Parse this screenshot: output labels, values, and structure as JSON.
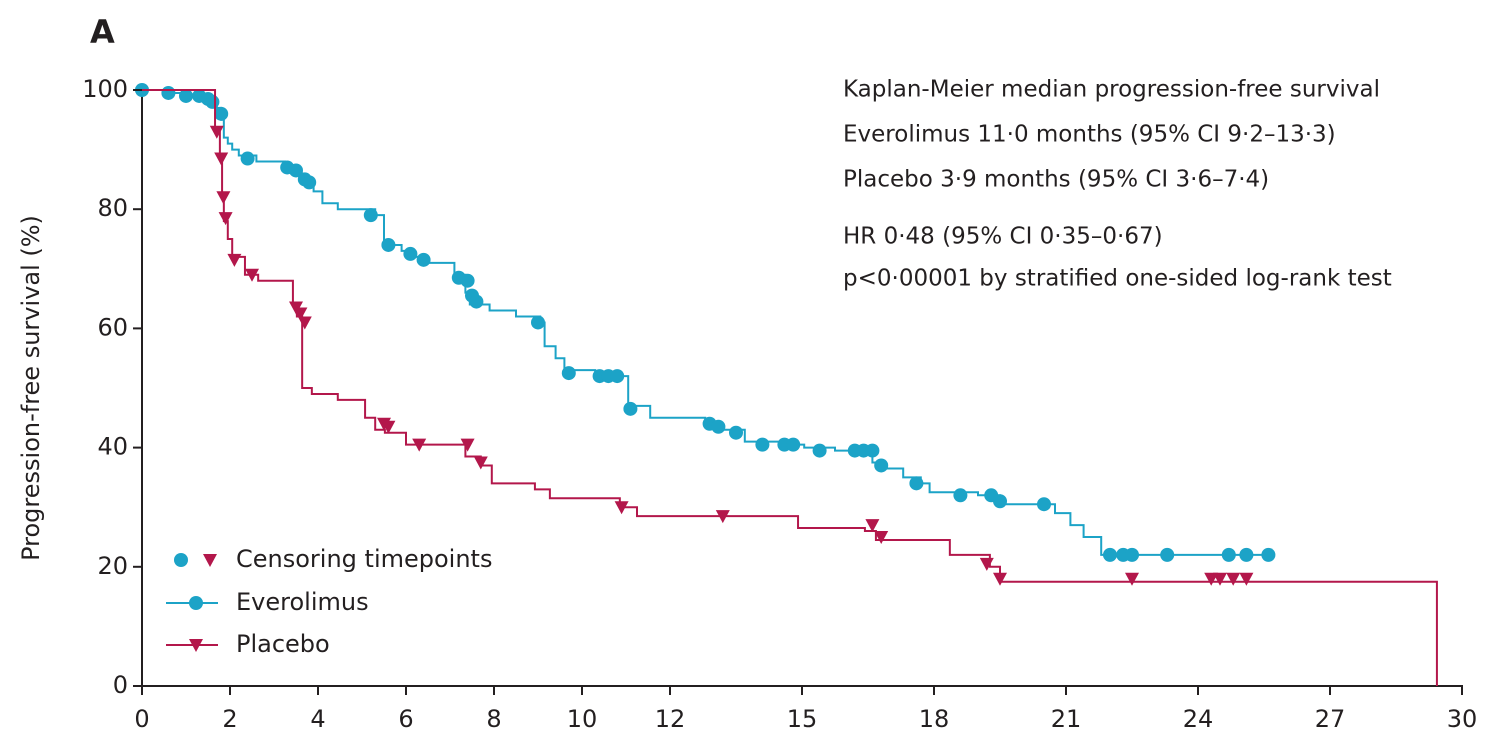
{
  "chart_data": {
    "type": "step",
    "panel_label": "A",
    "ylabel": "Progression-free survival (%)",
    "xlim": [
      0,
      30
    ],
    "ylim": [
      0,
      100
    ],
    "xticks": [
      0,
      2,
      4,
      6,
      8,
      10,
      12,
      15,
      18,
      21,
      24,
      27,
      30
    ],
    "yticks": [
      0,
      20,
      40,
      60,
      80,
      100
    ],
    "annotations": [
      "Kaplan-Meier median progression-free survival",
      "Everolimus 11·0 months (95% CI 9·2–13·3)",
      "Placebo 3·9 months (95% CI 3·6–7·4)",
      "HR 0·48 (95% CI 0·35–0·67)",
      "p<0·00001 by stratified one-sided log-rank test"
    ],
    "censor_legend": "Censoring timepoints",
    "series": [
      {
        "name": "Everolimus",
        "color": "#1ca3c7",
        "marker": "circle",
        "x": [
          0,
          0.5,
          1.0,
          1.4,
          1.7,
          1.8,
          1.86,
          1.95,
          2.05,
          2.2,
          2.6,
          3.25,
          3.6,
          3.7,
          3.9,
          4.1,
          4.45,
          5.3,
          5.5,
          5.9,
          6.1,
          6.5,
          7.1,
          7.35,
          7.45,
          7.9,
          8.5,
          9.05,
          9.15,
          9.4,
          9.6,
          10.3,
          11.05,
          11.55,
          12.8,
          13.15,
          13.7,
          14.5,
          15.05,
          15.75,
          16.6,
          16.75,
          17.3,
          17.7,
          17.9,
          19.0,
          19.5,
          20.75,
          21.1,
          21.4,
          21.8,
          25.6
        ],
        "values": [
          100,
          99.5,
          99,
          98.5,
          97,
          95,
          92,
          91,
          90,
          89,
          88,
          87,
          86,
          85,
          83,
          81,
          80,
          79,
          74,
          73,
          72,
          71,
          69,
          66,
          64,
          63,
          62,
          61,
          57,
          55,
          53,
          52,
          47,
          45,
          44,
          43,
          41,
          40.5,
          40,
          39.5,
          37.5,
          36.5,
          35,
          34,
          32.5,
          32,
          30.5,
          29,
          27,
          25,
          22,
          22
        ],
        "censored_x": [
          0,
          0.6,
          1.0,
          1.3,
          1.5,
          1.6,
          1.8,
          2.4,
          3.3,
          3.5,
          3.7,
          3.8,
          5.2,
          5.6,
          6.1,
          6.4,
          7.2,
          7.4,
          7.5,
          7.6,
          9.0,
          9.7,
          10.4,
          10.6,
          10.8,
          11.1,
          12.9,
          13.1,
          13.5,
          14.1,
          14.6,
          14.8,
          15.4,
          16.2,
          16.4,
          16.6,
          16.8,
          17.6,
          18.6,
          19.3,
          19.5,
          20.5,
          22.0,
          22.3,
          22.5,
          23.3,
          24.7,
          25.1,
          25.6
        ],
        "censored_values": [
          100,
          99.5,
          99,
          99,
          98.5,
          98,
          96,
          88.5,
          87,
          86.5,
          85,
          84.5,
          79,
          74,
          72.5,
          71.5,
          68.5,
          68,
          65.5,
          64.5,
          61,
          52.5,
          52,
          52,
          52,
          46.5,
          44,
          43.5,
          42.5,
          40.5,
          40.5,
          40.5,
          39.5,
          39.5,
          39.5,
          39.5,
          37,
          34,
          32,
          32,
          31,
          30.5,
          22,
          22,
          22,
          22,
          22,
          22,
          22
        ]
      },
      {
        "name": "Placebo",
        "color": "#b3174b",
        "marker": "triangle",
        "x": [
          0,
          1.66,
          1.77,
          1.82,
          1.86,
          1.95,
          2.05,
          2.34,
          2.64,
          3.43,
          3.52,
          3.64,
          3.86,
          4.45,
          5.07,
          5.3,
          5.52,
          6.0,
          7.35,
          7.7,
          7.95,
          8.93,
          9.27,
          10.86,
          11.25,
          14.91,
          16.43,
          16.68,
          18.36,
          19.27,
          19.5,
          29.43
        ],
        "values": [
          100,
          93,
          89,
          82,
          78,
          75,
          72,
          69,
          68,
          64,
          62,
          50,
          49,
          48,
          45,
          43,
          42.5,
          40.5,
          38.5,
          37,
          34,
          33,
          31.5,
          30,
          28.5,
          26.5,
          26,
          24.5,
          22,
          20,
          17.5,
          0
        ],
        "censored_x": [
          1.7,
          1.8,
          1.85,
          1.9,
          2.1,
          2.5,
          3.5,
          3.6,
          3.7,
          5.5,
          5.6,
          6.3,
          7.4,
          7.7,
          10.9,
          13.2,
          16.6,
          16.8,
          19.2,
          19.5,
          22.5,
          24.3,
          24.5,
          24.8,
          25.1
        ],
        "censored_values": [
          93,
          88.5,
          82,
          78.5,
          71.5,
          69,
          63.5,
          62.5,
          61,
          44,
          43.5,
          40.5,
          40.5,
          37.5,
          30,
          28.5,
          27,
          25,
          20.5,
          18,
          18,
          18,
          18,
          18,
          18
        ]
      }
    ]
  }
}
